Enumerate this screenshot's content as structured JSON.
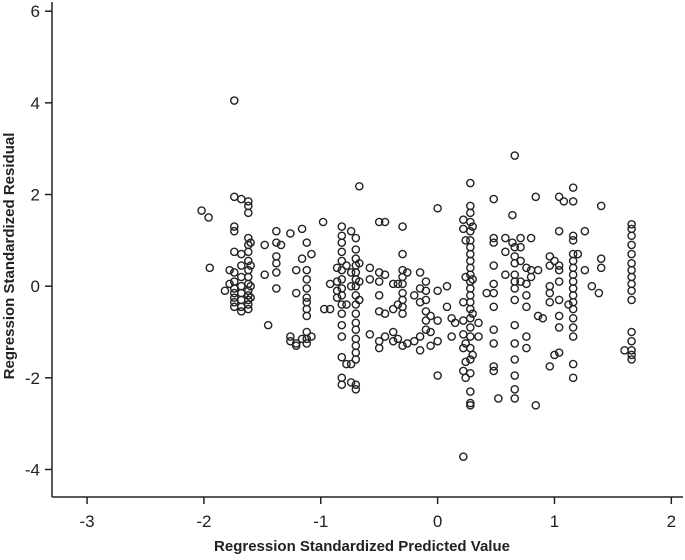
{
  "chart_data": {
    "type": "scatter",
    "xlabel": "Regression Standardized Predicted Value",
    "ylabel": "Regression Standardized Residual",
    "xlim": [
      -3.3,
      2.1
    ],
    "ylim": [
      -4.6,
      6.2
    ],
    "xticks": [
      -3,
      -2,
      -1,
      0,
      1,
      2
    ],
    "xtick_labels": [
      "-3",
      "-2",
      "-1",
      "0",
      "1",
      "2"
    ],
    "yticks": [
      -4,
      -2,
      0,
      2,
      4,
      6
    ],
    "ytick_labels": [
      "-4",
      "-2",
      "0",
      "2",
      "4",
      "6"
    ],
    "grid": false,
    "marker": "open-circle",
    "marker_color": "#222222",
    "columns": [
      {
        "x": -2.02,
        "ys": [
          1.65
        ]
      },
      {
        "x": -1.96,
        "ys": [
          1.5
        ]
      },
      {
        "x": -1.95,
        "ys": [
          0.4
        ]
      },
      {
        "x": -1.82,
        "ys": [
          -0.1
        ]
      },
      {
        "x": -1.78,
        "ys": [
          0.05,
          0.35
        ]
      },
      {
        "x": -1.74,
        "ys": [
          4.05,
          1.95,
          1.3,
          1.2,
          0.75,
          0.3,
          0.1,
          -0.05,
          -0.15,
          -0.25,
          -0.35,
          -0.45
        ]
      },
      {
        "x": -1.68,
        "ys": [
          1.9,
          0.7,
          0.45,
          0.2,
          0.0,
          -0.15,
          -0.3,
          -0.45,
          -0.55
        ]
      },
      {
        "x": -1.62,
        "ys": [
          1.85,
          1.75,
          1.6,
          1.05,
          0.9,
          0.75,
          0.55,
          0.35,
          0.2,
          0.05,
          -0.1,
          -0.2,
          -0.3,
          -0.4,
          -0.5
        ]
      },
      {
        "x": -1.6,
        "ys": [
          0.95,
          0.45,
          0.0,
          -0.25
        ]
      },
      {
        "x": -1.48,
        "ys": [
          0.9,
          0.25
        ]
      },
      {
        "x": -1.45,
        "ys": [
          -0.85
        ]
      },
      {
        "x": -1.38,
        "ys": [
          1.2,
          0.95,
          0.65,
          0.5,
          0.3,
          -0.05
        ]
      },
      {
        "x": -1.34,
        "ys": [
          0.9
        ]
      },
      {
        "x": -1.26,
        "ys": [
          1.15,
          -1.1,
          -1.2
        ]
      },
      {
        "x": -1.21,
        "ys": [
          0.35,
          -0.15,
          -1.25,
          -1.3
        ]
      },
      {
        "x": -1.16,
        "ys": [
          1.25,
          0.6,
          -1.15
        ]
      },
      {
        "x": -1.12,
        "ys": [
          0.95,
          0.35,
          0.15,
          -0.05,
          -0.25,
          -0.35,
          -0.5,
          -0.65,
          -1.0,
          -1.15,
          -1.25
        ]
      },
      {
        "x": -1.08,
        "ys": [
          0.7,
          -1.1
        ]
      },
      {
        "x": -0.98,
        "ys": [
          1.4
        ]
      },
      {
        "x": -0.97,
        "ys": [
          -0.5
        ]
      },
      {
        "x": -0.92,
        "ys": [
          -0.5,
          0.05
        ]
      },
      {
        "x": -0.86,
        "ys": [
          0.4,
          0.1,
          -0.1,
          -0.25
        ]
      },
      {
        "x": -0.82,
        "ys": [
          1.3,
          1.1,
          0.95,
          0.75,
          0.55,
          0.35,
          0.15,
          -0.05,
          -0.2,
          -0.4,
          -0.6,
          -0.85,
          -1.1,
          -1.55,
          -2.0,
          -2.15
        ]
      },
      {
        "x": -0.78,
        "ys": [
          0.45,
          -0.4,
          -1.7
        ]
      },
      {
        "x": -0.74,
        "ys": [
          1.2,
          0.3,
          0.0,
          -1.7,
          -2.1
        ]
      },
      {
        "x": -0.7,
        "ys": [
          1.05,
          0.8,
          0.6,
          0.45,
          0.3,
          0.15,
          0.0,
          -0.2,
          -0.4,
          -0.6,
          -0.8,
          -0.95,
          -1.15,
          -1.3,
          -1.45,
          -1.6,
          -2.15,
          -2.25
        ]
      },
      {
        "x": -0.67,
        "ys": [
          2.18,
          0.5,
          0.1,
          -0.3
        ]
      },
      {
        "x": -0.58,
        "ys": [
          0.4,
          0.15,
          -1.05
        ]
      },
      {
        "x": -0.5,
        "ys": [
          1.4,
          0.3,
          0.1,
          -0.2,
          -0.55,
          -1.2,
          -1.35
        ]
      },
      {
        "x": -0.45,
        "ys": [
          1.4,
          0.25,
          -0.6,
          -1.1
        ]
      },
      {
        "x": -0.38,
        "ys": [
          0.05,
          -0.5,
          -1.0,
          -1.2
        ]
      },
      {
        "x": -0.34,
        "ys": [
          0.05,
          -0.4,
          -1.15
        ]
      },
      {
        "x": -0.3,
        "ys": [
          1.3,
          0.7,
          0.35,
          0.2,
          0.05,
          -0.15,
          -0.3,
          -0.45,
          -0.6,
          -1.3
        ]
      },
      {
        "x": -0.26,
        "ys": [
          0.3,
          -1.25
        ]
      },
      {
        "x": -0.2,
        "ys": [
          -0.2,
          -1.2
        ]
      },
      {
        "x": -0.15,
        "ys": [
          0.3,
          -0.05,
          -0.35,
          -1.1,
          -1.4
        ]
      },
      {
        "x": -0.1,
        "ys": [
          0.1,
          -0.1,
          -0.3,
          -0.55,
          -0.75,
          -0.95
        ]
      },
      {
        "x": -0.06,
        "ys": [
          -0.65,
          -1.0,
          -1.3
        ]
      },
      {
        "x": 0.0,
        "ys": [
          1.7,
          -0.1,
          -0.75,
          -1.2,
          -1.95
        ]
      },
      {
        "x": 0.08,
        "ys": [
          0.0,
          -0.45
        ]
      },
      {
        "x": 0.12,
        "ys": [
          -0.7,
          -1.1
        ]
      },
      {
        "x": 0.15,
        "ys": [
          -0.8
        ]
      },
      {
        "x": 0.22,
        "ys": [
          1.45,
          1.25,
          -0.35,
          -0.75,
          -1.05,
          -1.35,
          -1.85,
          -3.72
        ]
      },
      {
        "x": 0.24,
        "ys": [
          1.0,
          0.2,
          -1.25,
          -1.65,
          -2.0
        ]
      },
      {
        "x": 0.28,
        "ys": [
          2.25,
          1.75,
          1.6,
          1.4,
          1.2,
          1.0,
          0.85,
          0.7,
          0.55,
          0.4,
          0.25,
          0.1,
          -0.05,
          -0.2,
          -0.35,
          -0.5,
          -0.7,
          -0.9,
          -1.1,
          -1.35,
          -1.6,
          -1.9,
          -2.3,
          -2.55,
          -2.6
        ]
      },
      {
        "x": 0.3,
        "ys": [
          1.3,
          0.15,
          -0.6,
          -1.5
        ]
      },
      {
        "x": 0.35,
        "ys": [
          -0.8,
          -1.1
        ]
      },
      {
        "x": 0.42,
        "ys": [
          -0.15
        ]
      },
      {
        "x": 0.48,
        "ys": [
          1.9,
          1.05,
          0.95,
          0.45,
          0.05,
          -0.15,
          -0.45,
          -0.95,
          -1.25,
          -1.75,
          -1.85
        ]
      },
      {
        "x": 0.52,
        "ys": [
          -2.45
        ]
      },
      {
        "x": 0.58,
        "ys": [
          1.05,
          0.75,
          0.25
        ]
      },
      {
        "x": 0.64,
        "ys": [
          1.55,
          0.95
        ]
      },
      {
        "x": 0.66,
        "ys": [
          2.85,
          0.85,
          0.65,
          0.5,
          0.25,
          0.1,
          -0.05,
          -0.3,
          -0.85,
          -1.25,
          -1.6,
          -1.95,
          -2.25,
          -2.45
        ]
      },
      {
        "x": 0.71,
        "ys": [
          1.05,
          0.85,
          0.55,
          0.1
        ]
      },
      {
        "x": 0.76,
        "ys": [
          0.4,
          0.05,
          -0.2,
          -0.45,
          -1.1,
          -1.35
        ]
      },
      {
        "x": 0.8,
        "ys": [
          1.05,
          0.35,
          0.2
        ]
      },
      {
        "x": 0.84,
        "ys": [
          1.95,
          -2.6
        ]
      },
      {
        "x": 0.86,
        "ys": [
          0.35,
          -0.65
        ]
      },
      {
        "x": 0.9,
        "ys": [
          -0.7
        ]
      },
      {
        "x": 0.96,
        "ys": [
          0.65,
          0.45,
          0.0,
          -0.15,
          -0.35,
          -1.75
        ]
      },
      {
        "x": 1.0,
        "ys": [
          0.55,
          -1.5
        ]
      },
      {
        "x": 1.04,
        "ys": [
          1.95,
          1.2,
          0.45,
          0.35,
          0.1,
          -0.3,
          -0.65,
          -0.9,
          -1.45
        ]
      },
      {
        "x": 1.08,
        "ys": [
          1.85
        ]
      },
      {
        "x": 1.12,
        "ys": [
          -0.4
        ]
      },
      {
        "x": 1.16,
        "ys": [
          2.15,
          1.85,
          1.1,
          1.0,
          0.7,
          0.55,
          0.4,
          0.25,
          0.1,
          -0.05,
          -0.2,
          -0.35,
          -0.5,
          -0.7,
          -0.9,
          -1.1,
          -1.7,
          -2.0
        ]
      },
      {
        "x": 1.2,
        "ys": [
          0.7
        ]
      },
      {
        "x": 1.26,
        "ys": [
          1.2,
          0.35
        ]
      },
      {
        "x": 1.32,
        "ys": [
          0.0
        ]
      },
      {
        "x": 1.38,
        "ys": [
          -0.15
        ]
      },
      {
        "x": 1.4,
        "ys": [
          1.75,
          0.6,
          0.4
        ]
      },
      {
        "x": 1.6,
        "ys": [
          -1.4
        ]
      },
      {
        "x": 1.66,
        "ys": [
          1.35,
          1.25,
          1.1,
          0.9,
          0.7,
          0.5,
          0.35,
          0.2,
          0.05,
          -0.1,
          -0.3,
          -1.0,
          -1.2,
          -1.4,
          -1.5,
          -1.6
        ]
      }
    ]
  }
}
